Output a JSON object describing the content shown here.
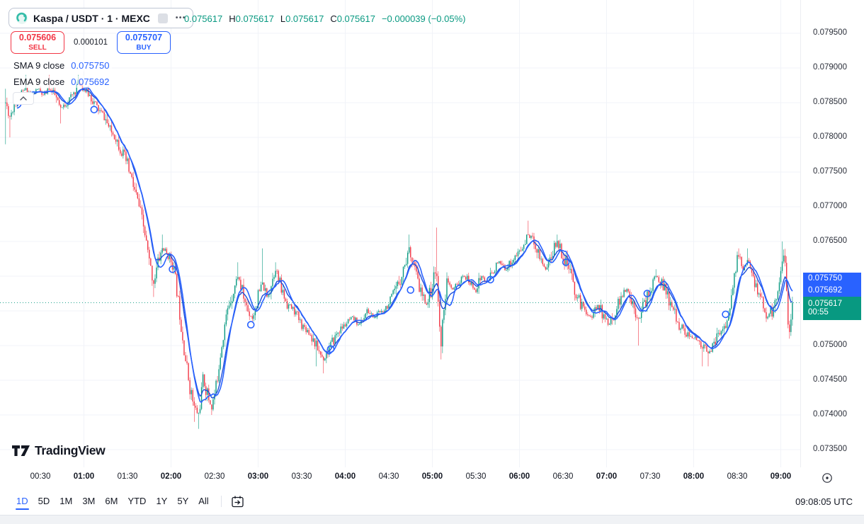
{
  "header": {
    "symbol_title": "Kaspa / USDT · 1 · MEXC",
    "more_dots": "•••",
    "ohlc": [
      {
        "label": "",
        "value": "0.075617"
      },
      {
        "label": "H",
        "value": "0.075617"
      },
      {
        "label": "L",
        "value": "0.075617"
      },
      {
        "label": "C",
        "value": "0.075617"
      }
    ],
    "change": "−0.000039 (−0.05%)",
    "sell": {
      "price": "0.075606",
      "label": "SELL"
    },
    "spread": "0.000101",
    "buy": {
      "price": "0.075707",
      "label": "BUY"
    },
    "indicators": [
      {
        "label": "SMA 9 close",
        "value": "0.075750"
      },
      {
        "label": "EMA 9 close",
        "value": "0.075692"
      }
    ]
  },
  "price_axis": {
    "ticks": [
      {
        "text": "0.079500",
        "p": 0.0795
      },
      {
        "text": "0.079000",
        "p": 0.079
      },
      {
        "text": "0.078500",
        "p": 0.0785
      },
      {
        "text": "0.078000",
        "p": 0.078
      },
      {
        "text": "0.077500",
        "p": 0.0775
      },
      {
        "text": "0.077000",
        "p": 0.077
      },
      {
        "text": "0.076500",
        "p": 0.0765
      },
      {
        "text": "0.075000",
        "p": 0.075
      },
      {
        "text": "0.074500",
        "p": 0.0745
      },
      {
        "text": "0.074000",
        "p": 0.074
      },
      {
        "text": "0.073500",
        "p": 0.0735
      }
    ],
    "badges": [
      {
        "text": "0.075750",
        "bg": "#2962ff",
        "kind": "sma"
      },
      {
        "text": "0.075692",
        "bg": "#2962ff",
        "kind": "ema"
      },
      {
        "text": "0.075617",
        "sub": "00:55",
        "bg": "#089981",
        "kind": "last"
      }
    ]
  },
  "time_axis": {
    "labels": [
      {
        "text": "00:30",
        "t": 30
      },
      {
        "text": "01:00",
        "t": 60
      },
      {
        "text": "01:30",
        "t": 90
      },
      {
        "text": "02:00",
        "t": 120
      },
      {
        "text": "02:30",
        "t": 150
      },
      {
        "text": "03:00",
        "t": 180
      },
      {
        "text": "03:30",
        "t": 210
      },
      {
        "text": "04:00",
        "t": 240
      },
      {
        "text": "04:30",
        "t": 270
      },
      {
        "text": "05:00",
        "t": 300
      },
      {
        "text": "05:30",
        "t": 330
      },
      {
        "text": "06:00",
        "t": 360
      },
      {
        "text": "06:30",
        "t": 390
      },
      {
        "text": "07:00",
        "t": 420
      },
      {
        "text": "07:30",
        "t": 450
      },
      {
        "text": "08:00",
        "t": 480
      },
      {
        "text": "08:30",
        "t": 510
      },
      {
        "text": "09:00",
        "t": 540
      }
    ]
  },
  "footer": {
    "ranges": [
      "1D",
      "5D",
      "1M",
      "3M",
      "6M",
      "YTD",
      "1Y",
      "5Y",
      "All"
    ],
    "active_range": "1D",
    "clock": "09:08:05 UTC"
  },
  "logo_text": "TradingView",
  "chart_data": {
    "type": "candlestick",
    "title": "Kaspa / USDT · 1 · MEXC, 1 minute",
    "interval_minutes": 1,
    "last_price": 0.075617,
    "ohlc_current": {
      "open": 0.075617,
      "high": 0.075617,
      "low": 0.075617,
      "close": 0.075617,
      "change": -3.9e-05,
      "change_pct": -0.05
    },
    "sma9_last": 0.07575,
    "ema9_last": 0.075692,
    "ylim": [
      0.0735,
      0.0795
    ],
    "t_range": [
      6,
      548
    ],
    "grid": true,
    "colors": {
      "up": "#089981",
      "down": "#f23645",
      "sma": "#2962ff",
      "ema": "#1f4fd8",
      "grid": "#f1f3f8",
      "last_line": "#089981"
    },
    "price_path": [
      [
        6,
        0.0785,
        0.0787,
        0.0779
      ],
      [
        9,
        0.0783,
        null,
        0.078
      ],
      [
        12,
        0.0785
      ],
      [
        16,
        0.0786
      ],
      [
        20,
        0.0787,
        0.0789,
        null
      ],
      [
        24,
        0.0786
      ],
      [
        28,
        0.0787
      ],
      [
        32,
        0.0786
      ],
      [
        36,
        0.0787,
        0.0789,
        null
      ],
      [
        40,
        0.0786
      ],
      [
        44,
        0.0784,
        null,
        0.0782
      ],
      [
        48,
        0.0785
      ],
      [
        52,
        0.0786
      ],
      [
        56,
        0.0788,
        0.0789,
        null
      ],
      [
        60,
        0.0787
      ],
      [
        64,
        0.0786
      ],
      [
        67,
        0.0785
      ],
      [
        70,
        0.0784
      ],
      [
        74,
        0.0783
      ],
      [
        78,
        0.0781
      ],
      [
        82,
        0.078
      ],
      [
        86,
        0.0778
      ],
      [
        90,
        0.0776
      ],
      [
        94,
        0.0773
      ],
      [
        98,
        0.077
      ],
      [
        102,
        0.0766
      ],
      [
        105,
        0.0762
      ],
      [
        108,
        0.0759,
        null,
        0.0757
      ],
      [
        111,
        0.0762
      ],
      [
        114,
        0.0764,
        0.0766,
        null
      ],
      [
        118,
        0.0763
      ],
      [
        121,
        0.0762
      ],
      [
        124,
        0.0758
      ],
      [
        127,
        0.0753
      ],
      [
        130,
        0.0748
      ],
      [
        133,
        0.0744
      ],
      [
        136,
        0.0741,
        null,
        0.0739
      ],
      [
        139,
        0.074,
        null,
        0.0738
      ],
      [
        142,
        0.0745
      ],
      [
        145,
        0.0743
      ],
      [
        148,
        0.0741,
        null,
        0.074
      ],
      [
        151,
        0.0744
      ],
      [
        154,
        0.0749
      ],
      [
        157,
        0.0753
      ],
      [
        160,
        0.0756
      ],
      [
        163,
        0.0758
      ],
      [
        166,
        0.076,
        0.0762,
        null
      ],
      [
        170,
        0.0757
      ],
      [
        173,
        0.0755
      ],
      [
        176,
        0.0754
      ],
      [
        180,
        0.0757
      ],
      [
        183,
        0.0759,
        0.0764,
        null
      ],
      [
        186,
        0.0757
      ],
      [
        189,
        0.0759
      ],
      [
        192,
        0.0761,
        0.0762,
        null
      ],
      [
        196,
        0.0758
      ],
      [
        200,
        0.0756
      ],
      [
        205,
        0.0755
      ],
      [
        210,
        0.0753
      ],
      [
        215,
        0.0752
      ],
      [
        220,
        0.075,
        null,
        0.0747
      ],
      [
        225,
        0.0748,
        null,
        0.0746
      ],
      [
        230,
        0.075
      ],
      [
        235,
        0.0752
      ],
      [
        240,
        0.0753
      ],
      [
        245,
        0.0754
      ],
      [
        250,
        0.0753
      ],
      [
        255,
        0.0755
      ],
      [
        260,
        0.0754
      ],
      [
        265,
        0.0755
      ],
      [
        270,
        0.0756
      ],
      [
        275,
        0.0758
      ],
      [
        280,
        0.0761
      ],
      [
        284,
        0.0764,
        0.0766,
        null
      ],
      [
        287,
        0.0762
      ],
      [
        290,
        0.0759
      ],
      [
        293,
        0.0757
      ],
      [
        296,
        0.0756
      ],
      [
        299,
        0.0758
      ],
      [
        303,
        0.0761,
        0.0767,
        null
      ],
      [
        305,
        0.0752
      ],
      [
        306,
        0.075,
        null,
        0.0748
      ],
      [
        308,
        0.0756
      ],
      [
        310,
        0.0759
      ],
      [
        314,
        0.0758
      ],
      [
        318,
        0.0759
      ],
      [
        322,
        0.076
      ],
      [
        326,
        0.0759
      ],
      [
        330,
        0.0758
      ],
      [
        334,
        0.076
      ],
      [
        338,
        0.0759
      ],
      [
        342,
        0.0761
      ],
      [
        346,
        0.0762
      ],
      [
        350,
        0.0761
      ],
      [
        354,
        0.0762
      ],
      [
        358,
        0.0763
      ],
      [
        362,
        0.0764
      ],
      [
        366,
        0.0766,
        0.0768,
        null
      ],
      [
        370,
        0.0765
      ],
      [
        374,
        0.0763
      ],
      [
        378,
        0.0761
      ],
      [
        382,
        0.0763
      ],
      [
        386,
        0.0765,
        0.0766,
        null
      ],
      [
        390,
        0.0763
      ],
      [
        394,
        0.0761
      ],
      [
        398,
        0.0758
      ],
      [
        402,
        0.0756
      ],
      [
        406,
        0.0755
      ],
      [
        410,
        0.0754
      ],
      [
        414,
        0.0756
      ],
      [
        418,
        0.0754
      ],
      [
        422,
        0.0753
      ],
      [
        426,
        0.0755
      ],
      [
        430,
        0.0757
      ],
      [
        434,
        0.0758
      ],
      [
        438,
        0.0756
      ],
      [
        442,
        0.0754,
        null,
        0.075
      ],
      [
        446,
        0.0756
      ],
      [
        450,
        0.0758
      ],
      [
        454,
        0.076,
        0.0761,
        null
      ],
      [
        458,
        0.0759
      ],
      [
        462,
        0.0757
      ],
      [
        466,
        0.0755
      ],
      [
        470,
        0.0753
      ],
      [
        474,
        0.0752
      ],
      [
        478,
        0.0751
      ],
      [
        482,
        0.0751
      ],
      [
        486,
        0.075,
        null,
        0.0747
      ],
      [
        490,
        0.0749,
        null,
        0.0747
      ],
      [
        494,
        0.075
      ],
      [
        498,
        0.0752
      ],
      [
        502,
        0.0753
      ],
      [
        505,
        0.0755
      ],
      [
        508,
        0.076
      ],
      [
        511,
        0.0763,
        0.0764,
        null
      ],
      [
        514,
        0.0761
      ],
      [
        517,
        0.0762,
        0.0764,
        null
      ],
      [
        520,
        0.076
      ],
      [
        524,
        0.0758
      ],
      [
        528,
        0.0756
      ],
      [
        531,
        0.0754
      ],
      [
        534,
        0.0755
      ],
      [
        537,
        0.0757
      ],
      [
        539,
        0.0759
      ],
      [
        541,
        0.0763,
        0.0765,
        null
      ],
      [
        543,
        0.0761
      ],
      [
        545,
        0.0754
      ],
      [
        546,
        0.0752,
        null,
        0.0751
      ],
      [
        548,
        0.075617
      ]
    ],
    "markers": [
      [
        67,
        0.0784
      ],
      [
        121,
        0.0761
      ],
      [
        175,
        0.0753
      ],
      [
        230,
        0.07495
      ],
      [
        285,
        0.0758
      ],
      [
        340,
        0.07595
      ],
      [
        392,
        0.0762
      ],
      [
        448,
        0.07575
      ],
      [
        502,
        0.07545
      ]
    ]
  }
}
